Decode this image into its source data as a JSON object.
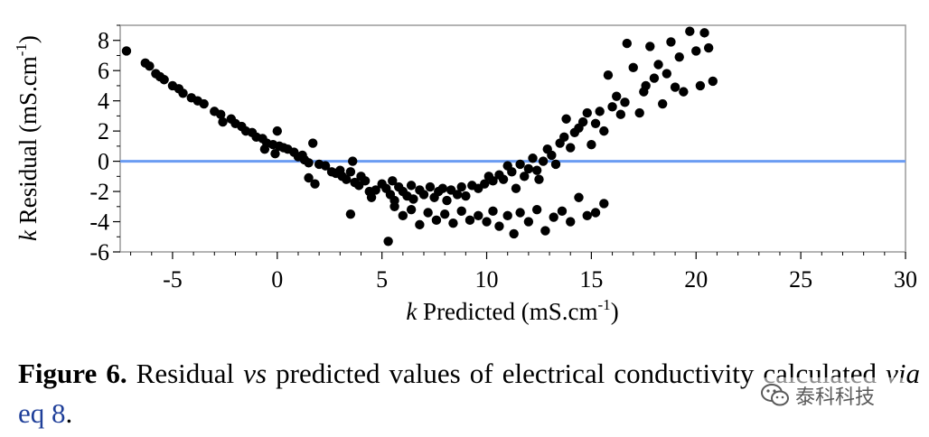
{
  "chart_data": {
    "type": "scatter",
    "title": "",
    "xlabel_italic": "k",
    "xlabel_rest": " Predicted (mS.cm",
    "xlabel_sup": "-1",
    "xlabel_close": ")",
    "ylabel_italic": "k",
    "ylabel_rest": " Residual (mS.cm",
    "ylabel_sup": "-1",
    "ylabel_close": ")",
    "xlim": [
      -7.5,
      30
    ],
    "ylim": [
      -6,
      9
    ],
    "xticks": [
      -5,
      0,
      5,
      10,
      15,
      20,
      25,
      30
    ],
    "yticks": [
      -6,
      -4,
      -2,
      0,
      2,
      4,
      6,
      8
    ],
    "reference_line": {
      "y": 0,
      "color": "#6a9cf2"
    },
    "marker_color": "#000000",
    "points": [
      [
        -7.2,
        7.3
      ],
      [
        -6.3,
        6.5
      ],
      [
        -6.1,
        6.3
      ],
      [
        -5.8,
        5.8
      ],
      [
        -5.6,
        5.6
      ],
      [
        -5.4,
        5.4
      ],
      [
        -5.0,
        5.0
      ],
      [
        -4.7,
        4.8
      ],
      [
        -4.5,
        4.5
      ],
      [
        -4.1,
        4.2
      ],
      [
        -3.8,
        4.0
      ],
      [
        -3.5,
        3.8
      ],
      [
        -3.0,
        3.3
      ],
      [
        -2.7,
        3.1
      ],
      [
        -2.6,
        2.6
      ],
      [
        -2.2,
        2.8
      ],
      [
        -2.0,
        2.5
      ],
      [
        -1.7,
        2.3
      ],
      [
        -1.5,
        2.0
      ],
      [
        -1.2,
        1.9
      ],
      [
        -1.0,
        1.6
      ],
      [
        -0.7,
        1.5
      ],
      [
        -0.5,
        1.2
      ],
      [
        -0.2,
        1.1
      ],
      [
        -0.6,
        0.8
      ],
      [
        -0.1,
        0.5
      ],
      [
        0.0,
        2.0
      ],
      [
        0.1,
        1.0
      ],
      [
        0.3,
        0.9
      ],
      [
        0.5,
        0.8
      ],
      [
        0.8,
        0.6
      ],
      [
        1.0,
        0.3
      ],
      [
        1.2,
        0.4
      ],
      [
        1.3,
        0.1
      ],
      [
        1.5,
        -0.1
      ],
      [
        1.7,
        1.2
      ],
      [
        1.5,
        -1.1
      ],
      [
        1.8,
        -1.5
      ],
      [
        2.0,
        -0.2
      ],
      [
        2.3,
        -0.3
      ],
      [
        2.6,
        -0.7
      ],
      [
        2.8,
        -0.8
      ],
      [
        3.0,
        -0.6
      ],
      [
        3.1,
        -1.0
      ],
      [
        3.3,
        -1.2
      ],
      [
        3.5,
        -0.7
      ],
      [
        3.6,
        0.0
      ],
      [
        3.7,
        -1.4
      ],
      [
        3.9,
        -1.6
      ],
      [
        4.0,
        -1.0
      ],
      [
        4.2,
        -1.3
      ],
      [
        4.4,
        -2.0
      ],
      [
        4.5,
        -2.4
      ],
      [
        4.7,
        -1.9
      ],
      [
        5.0,
        -1.5
      ],
      [
        5.2,
        -1.8
      ],
      [
        5.4,
        -2.2
      ],
      [
        5.5,
        -1.3
      ],
      [
        5.6,
        -2.6
      ],
      [
        5.8,
        -1.7
      ],
      [
        6.0,
        -2.0
      ],
      [
        6.2,
        -2.3
      ],
      [
        6.4,
        -1.6
      ],
      [
        6.5,
        -2.5
      ],
      [
        6.8,
        -1.9
      ],
      [
        7.0,
        -2.2
      ],
      [
        7.3,
        -1.7
      ],
      [
        7.5,
        -2.4
      ],
      [
        7.7,
        -2.0
      ],
      [
        7.9,
        -1.8
      ],
      [
        8.1,
        -2.6
      ],
      [
        8.3,
        -1.9
      ],
      [
        8.6,
        -2.2
      ],
      [
        8.8,
        -1.7
      ],
      [
        9.0,
        -2.3
      ],
      [
        9.3,
        -1.6
      ],
      [
        9.6,
        -1.8
      ],
      [
        9.9,
        -1.5
      ],
      [
        10.1,
        -1.0
      ],
      [
        10.3,
        -1.3
      ],
      [
        10.6,
        -0.9
      ],
      [
        10.8,
        -1.2
      ],
      [
        11.0,
        -0.3
      ],
      [
        11.2,
        -0.7
      ],
      [
        11.4,
        -1.8
      ],
      [
        11.6,
        -0.2
      ],
      [
        11.8,
        -1.0
      ],
      [
        12.0,
        -0.5
      ],
      [
        12.2,
        0.2
      ],
      [
        12.4,
        -0.6
      ],
      [
        12.5,
        -1.2
      ],
      [
        12.7,
        0.0
      ],
      [
        12.9,
        0.8
      ],
      [
        13.1,
        0.4
      ],
      [
        13.3,
        -0.2
      ],
      [
        13.5,
        1.2
      ],
      [
        13.7,
        1.6
      ],
      [
        13.8,
        2.8
      ],
      [
        14.0,
        0.9
      ],
      [
        14.2,
        1.9
      ],
      [
        14.4,
        2.2
      ],
      [
        14.6,
        2.6
      ],
      [
        14.8,
        3.2
      ],
      [
        15.0,
        1.1
      ],
      [
        15.2,
        2.5
      ],
      [
        15.4,
        3.3
      ],
      [
        15.6,
        2.0
      ],
      [
        15.8,
        5.7
      ],
      [
        16.0,
        3.6
      ],
      [
        16.2,
        4.3
      ],
      [
        16.4,
        3.1
      ],
      [
        16.6,
        3.9
      ],
      [
        16.7,
        7.8
      ],
      [
        17.0,
        6.2
      ],
      [
        17.3,
        3.2
      ],
      [
        17.5,
        4.6
      ],
      [
        17.6,
        5.0
      ],
      [
        17.8,
        7.6
      ],
      [
        18.0,
        5.5
      ],
      [
        18.2,
        6.4
      ],
      [
        18.4,
        3.8
      ],
      [
        18.6,
        5.8
      ],
      [
        18.8,
        7.9
      ],
      [
        19.0,
        4.9
      ],
      [
        19.2,
        6.9
      ],
      [
        19.4,
        4.6
      ],
      [
        19.7,
        8.6
      ],
      [
        20.0,
        7.3
      ],
      [
        20.2,
        5.0
      ],
      [
        20.4,
        8.5
      ],
      [
        20.6,
        7.5
      ],
      [
        20.8,
        5.3
      ],
      [
        3.5,
        -3.5
      ],
      [
        5.3,
        -5.3
      ],
      [
        5.6,
        -3.0
      ],
      [
        6.0,
        -3.6
      ],
      [
        6.4,
        -3.2
      ],
      [
        6.8,
        -4.2
      ],
      [
        7.2,
        -3.4
      ],
      [
        7.6,
        -3.9
      ],
      [
        8.0,
        -3.5
      ],
      [
        8.4,
        -4.1
      ],
      [
        8.8,
        -3.3
      ],
      [
        9.2,
        -3.9
      ],
      [
        9.6,
        -3.6
      ],
      [
        10.0,
        -4.0
      ],
      [
        10.3,
        -3.3
      ],
      [
        10.6,
        -4.3
      ],
      [
        11.0,
        -3.6
      ],
      [
        11.3,
        -4.8
      ],
      [
        11.6,
        -3.4
      ],
      [
        12.0,
        -4.0
      ],
      [
        12.4,
        -3.2
      ],
      [
        12.8,
        -4.6
      ],
      [
        13.2,
        -3.7
      ],
      [
        13.6,
        -3.3
      ],
      [
        14.0,
        -4.0
      ],
      [
        14.4,
        -2.4
      ],
      [
        14.8,
        -3.6
      ],
      [
        15.2,
        -3.4
      ],
      [
        15.6,
        -2.8
      ]
    ]
  },
  "caption": {
    "label": "Figure 6.",
    "text1": "Residual ",
    "vs": "vs",
    "text2": " predicted values of electrical conductivity calculated ",
    "via": "via",
    "text3": " ",
    "link": "eq 8",
    "text4": "."
  },
  "watermark": {
    "text": "泰科科技"
  }
}
